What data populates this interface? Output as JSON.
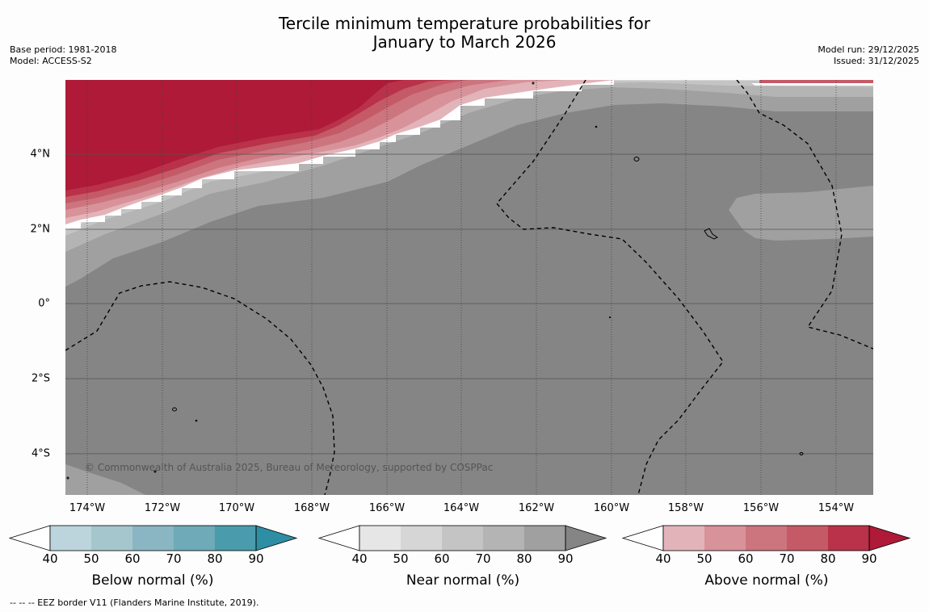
{
  "title_line1": "Tercile minimum temperature probabilities for",
  "title_line2": "January to March 2026",
  "meta_left": {
    "base_period": "Base period: 1981-2018",
    "model": "Model: ACCESS-S2"
  },
  "meta_right": {
    "model_run": "Model run: 29/12/2025",
    "issued": "Issued: 31/12/2025"
  },
  "map": {
    "lat_labels": [
      "4°N",
      "2°N",
      "0°",
      "2°S",
      "4°S"
    ],
    "lon_labels": [
      "174°W",
      "172°W",
      "170°W",
      "168°W",
      "166°W",
      "164°W",
      "162°W",
      "160°W",
      "158°W",
      "156°W",
      "154°W"
    ],
    "copyright": "© Commonwealth of Australia 2025, Bureau of Meteorology, supported by COSPPac"
  },
  "colorbars": [
    {
      "title": "Below normal (%)",
      "ticks": [
        "40",
        "50",
        "60",
        "70",
        "80",
        "90"
      ],
      "colors": [
        "#bcd4db",
        "#a6c6cd",
        "#89b6c2",
        "#6eaab8",
        "#4a9bac",
        "#2e8ea3"
      ]
    },
    {
      "title": "Near normal (%)",
      "ticks": [
        "40",
        "50",
        "60",
        "70",
        "80",
        "90"
      ],
      "colors": [
        "#e6e6e6",
        "#d6d6d6",
        "#c4c4c4",
        "#b4b4b4",
        "#a0a0a0",
        "#858585"
      ]
    },
    {
      "title": "Above normal (%)",
      "ticks": [
        "40",
        "50",
        "60",
        "70",
        "80",
        "90"
      ],
      "colors": [
        "#e2b4b9",
        "#d8929a",
        "#cc757f",
        "#c55a67",
        "#b93249",
        "#ae1a38"
      ]
    }
  ],
  "footer": "--  --  -- EEZ border V11 (Flanders Marine Institute, 2019)."
}
